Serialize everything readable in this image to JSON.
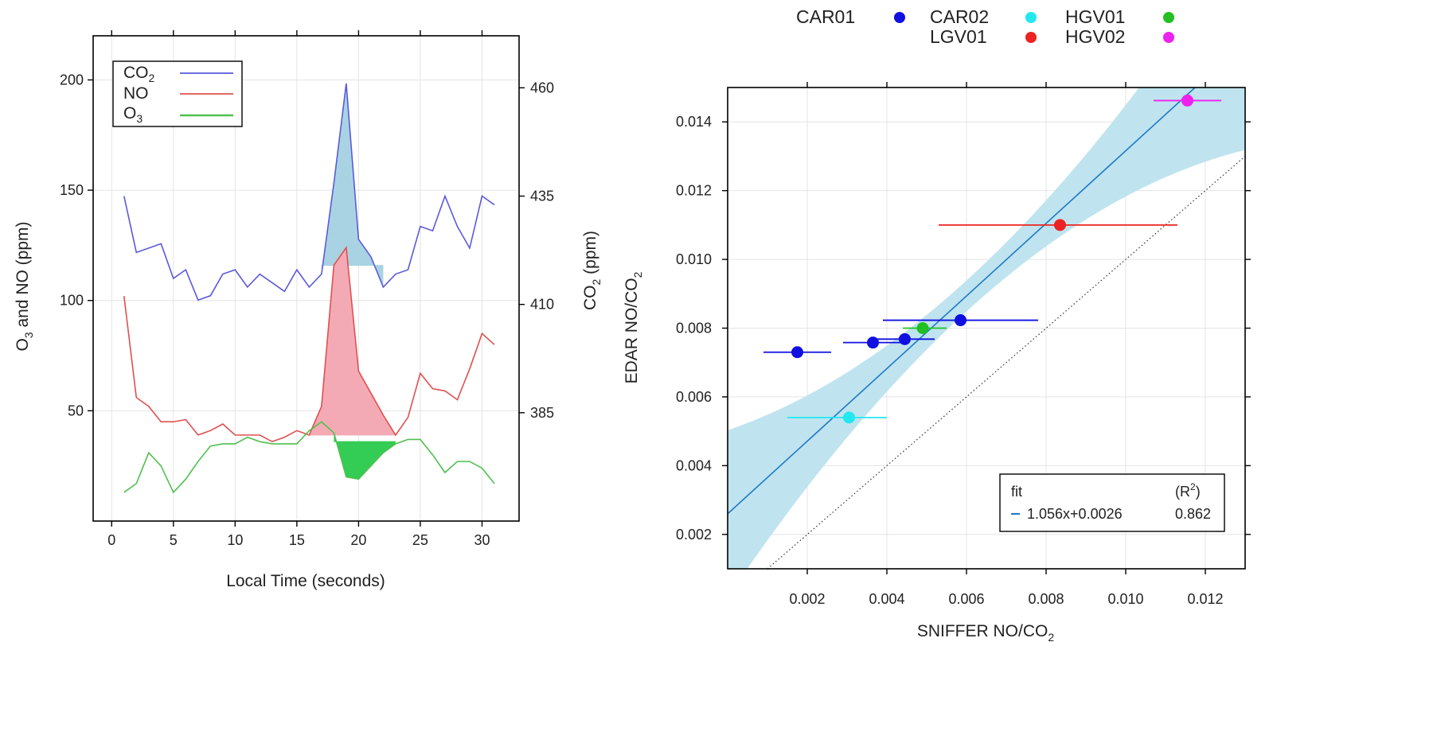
{
  "chart_data": [
    {
      "type": "line",
      "xlabel": "Local Time (seconds)",
      "ylabel": "O3 and NO (ppm)",
      "ylabel_right": "CO2 (ppm)",
      "xlim": [
        -1.5,
        33
      ],
      "ylim": [
        0,
        220
      ],
      "ylim_right": [
        360,
        472
      ],
      "x_ticks": [
        "0",
        "5",
        "10",
        "15",
        "20",
        "25",
        "30"
      ],
      "y_ticks": [
        "50",
        "100",
        "150",
        "200"
      ],
      "y_ticks_right": [
        "385",
        "410",
        "435",
        "460"
      ],
      "legend": [
        "CO2",
        "NO",
        "O3"
      ],
      "legend_position": "top-left",
      "grid": true,
      "series": [
        {
          "name": "CO2",
          "axis": "right",
          "color": "#5a5adc",
          "x": [
            1,
            2,
            3,
            4,
            5,
            6,
            7,
            8,
            9,
            10,
            11,
            12,
            13,
            14,
            15,
            16,
            17,
            18,
            19,
            20,
            21,
            22,
            23,
            24,
            25,
            26,
            27,
            28,
            29,
            30,
            31
          ],
          "values": [
            435,
            422,
            423,
            424,
            416,
            418,
            411,
            412,
            417,
            418,
            414,
            417,
            415,
            413,
            418,
            414,
            417,
            438,
            461,
            425,
            421,
            414,
            417,
            418,
            428,
            427,
            435,
            428,
            423,
            435,
            433
          ]
        },
        {
          "name": "NO",
          "axis": "left",
          "color": "#e05050",
          "x": [
            1,
            2,
            3,
            4,
            5,
            6,
            7,
            8,
            9,
            10,
            11,
            12,
            13,
            14,
            15,
            16,
            17,
            18,
            19,
            20,
            21,
            22,
            23,
            24,
            25,
            26,
            27,
            28,
            29,
            30,
            31
          ],
          "values": [
            102,
            56,
            52,
            45,
            45,
            46,
            39,
            41,
            44,
            39,
            39,
            39,
            36,
            38,
            41,
            39,
            52,
            116,
            124,
            68,
            58,
            48,
            39,
            47,
            67,
            60,
            59,
            55,
            69,
            85,
            80
          ]
        },
        {
          "name": "O3",
          "axis": "left",
          "color": "#50c050",
          "x": [
            1,
            2,
            3,
            4,
            5,
            6,
            7,
            8,
            9,
            10,
            11,
            12,
            13,
            14,
            15,
            16,
            17,
            18,
            19,
            20,
            21,
            22,
            23,
            24,
            25,
            26,
            27,
            28,
            29,
            30,
            31
          ],
          "values": [
            13,
            17,
            31,
            25,
            13,
            19,
            27,
            34,
            35,
            35,
            38,
            36,
            35,
            35,
            35,
            41,
            45,
            40,
            20,
            19,
            25,
            31,
            35,
            37,
            37,
            30,
            22,
            27,
            27,
            24,
            17
          ]
        }
      ],
      "shaded_regions": [
        {
          "series": "CO2",
          "x_from": 17,
          "x_to": 22,
          "baseline": 419,
          "color": "#a9d3e3"
        },
        {
          "series": "NO",
          "x_from": 16,
          "x_to": 23,
          "baseline": 39,
          "color": "#f4aab4"
        },
        {
          "series": "O3",
          "x_from": 18,
          "x_to": 23,
          "baseline": 36,
          "color": "#33cc55"
        }
      ]
    },
    {
      "type": "scatter",
      "xlabel": "SNIFFER NO/CO2",
      "ylabel": "EDAR NO/CO2",
      "xlim": [
        0,
        0.013
      ],
      "ylim": [
        0.001,
        0.015
      ],
      "x_ticks": [
        "0.002",
        "0.004",
        "0.006",
        "0.008",
        "0.010",
        "0.012"
      ],
      "y_ticks": [
        "0.002",
        "0.004",
        "0.006",
        "0.008",
        "0.010",
        "0.012",
        "0.014"
      ],
      "grid": true,
      "legend": [
        {
          "name": "CAR01",
          "color": "#1010e0"
        },
        {
          "name": "CAR02",
          "color": "#22e8f0"
        },
        {
          "name": "HGV01",
          "color": "#22c022"
        },
        {
          "name": "LGV01",
          "color": "#ee2222"
        },
        {
          "name": "HGV02",
          "color": "#ee22ee"
        }
      ],
      "legend_position": "top",
      "points": [
        {
          "group": "CAR01",
          "x": 0.00175,
          "y": 0.0073,
          "xerr": [
            0.0009,
            0.0026
          ]
        },
        {
          "group": "CAR01",
          "x": 0.00365,
          "y": 0.00758,
          "xerr": [
            0.0029,
            0.0044
          ]
        },
        {
          "group": "CAR01",
          "x": 0.00445,
          "y": 0.00768,
          "xerr": [
            0.0037,
            0.0052
          ]
        },
        {
          "group": "CAR01",
          "x": 0.00585,
          "y": 0.00823,
          "xerr": [
            0.0039,
            0.0078
          ]
        },
        {
          "group": "CAR02",
          "x": 0.00305,
          "y": 0.0054,
          "xerr": [
            0.0015,
            0.004
          ]
        },
        {
          "group": "HGV01",
          "x": 0.0049,
          "y": 0.008,
          "xerr": [
            0.0044,
            0.0055
          ]
        },
        {
          "group": "LGV01",
          "x": 0.00835,
          "y": 0.011,
          "xerr": [
            0.0053,
            0.0113
          ]
        },
        {
          "group": "HGV02",
          "x": 0.01155,
          "y": 0.01462,
          "xerr": [
            0.0107,
            0.0124
          ]
        }
      ],
      "fit": {
        "label_header": "fit",
        "r2_header": "(R²)",
        "equation": "1.056x+0.0026",
        "r2": "0.862",
        "slope": 1.056,
        "intercept": 0.0026,
        "color": "#1f78c8",
        "band_color": "#bfe4ef"
      },
      "reference_line": {
        "slope": 1,
        "intercept": 0,
        "style": "dotted"
      }
    }
  ]
}
